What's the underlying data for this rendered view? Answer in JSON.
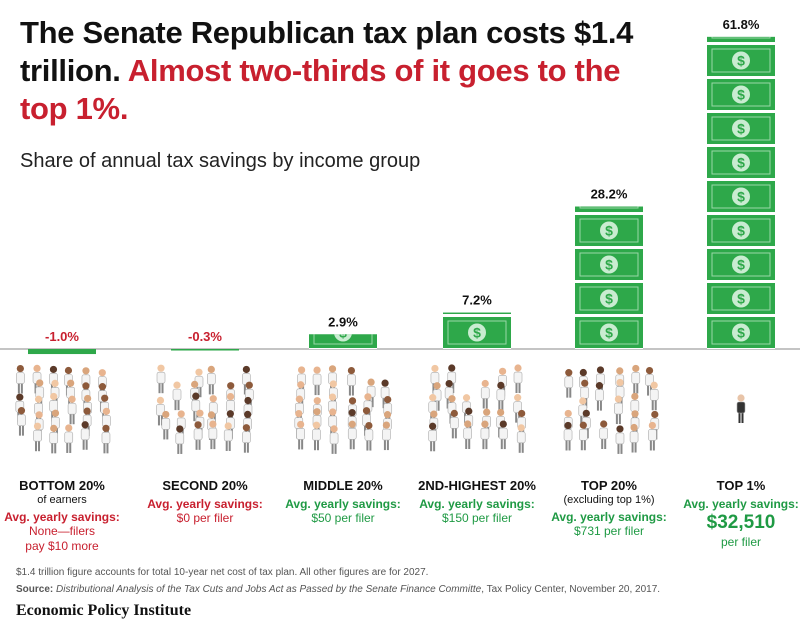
{
  "chart_data": {
    "type": "bar",
    "title_main": "The Senate Republican tax plan costs $1.4 trillion.",
    "title_highlight": "Almost two-thirds of it goes to the top 1%.",
    "subtitle": "Share of annual tax savings by income group",
    "categories": [
      "BOTTOM 20%",
      "SECOND 20%",
      "MIDDLE 20%",
      "2ND-HIGHEST 20%",
      "TOP 20%",
      "TOP 1%"
    ],
    "category_notes": [
      "of earners",
      null,
      null,
      null,
      "(excluding top 1%)",
      null
    ],
    "values": [
      -1.0,
      -0.3,
      2.9,
      7.2,
      28.2,
      61.8
    ],
    "value_labels": [
      "-1.0%",
      "-0.3%",
      "2.9%",
      "7.2%",
      "28.2%",
      "61.8%"
    ],
    "savings_label": "Avg. yearly savings:",
    "savings_amounts": [
      "None—filers pay $10 more",
      "$0 per filer",
      "$50 per filer",
      "$150 per filer",
      "$731 per filer",
      "$32,510"
    ],
    "savings_units": [
      null,
      null,
      null,
      null,
      null,
      "per filer"
    ],
    "color": "#2ea84a",
    "negative_color": "#c8202f",
    "positive_color": "#1f9a44",
    "footnote": "$1.4 trillion figure accounts for total 10-year net cost of tax plan. All other figures are for 2027.",
    "source_label": "Source:",
    "source_title": "Distributional Analysis of the Tax Cuts and Jobs Act as Passed by the Senate Finance Committe",
    "source_rest": ", Tax Policy Center, November 20, 2017.",
    "publisher": "Economic Policy Institute"
  }
}
